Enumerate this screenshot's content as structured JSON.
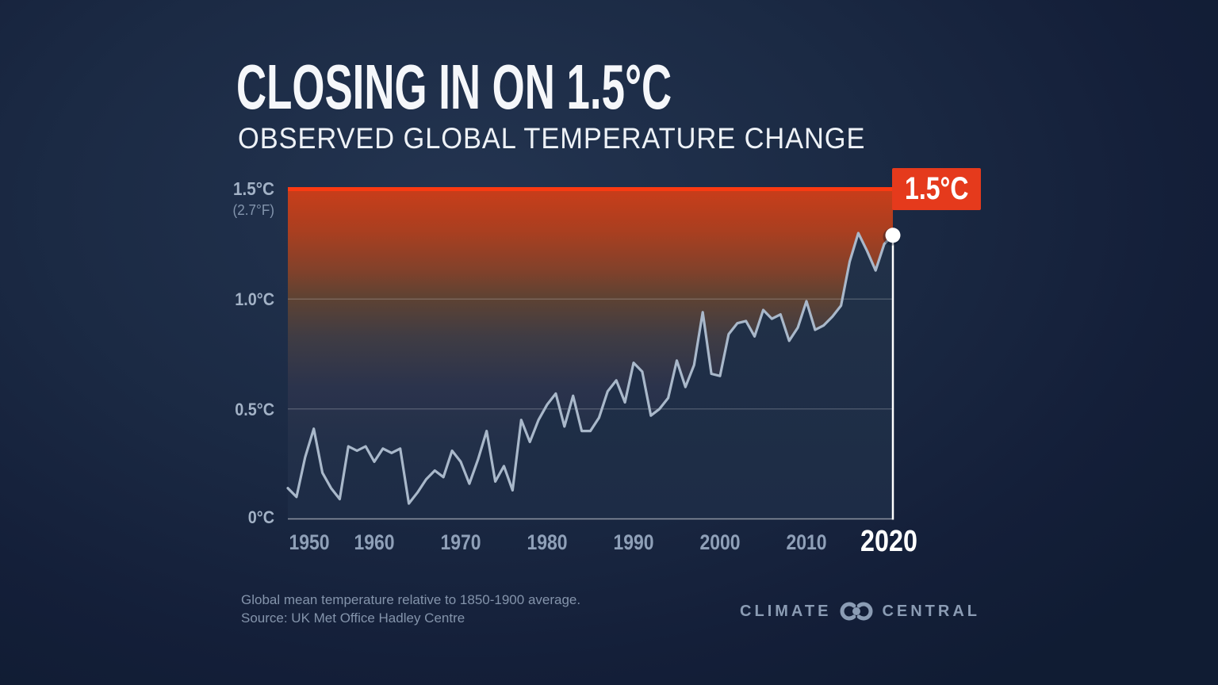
{
  "header": {
    "title": "CLOSING IN ON 1.5°C",
    "subtitle": "OBSERVED GLOBAL TEMPERATURE CHANGE"
  },
  "badge": {
    "label": "1.5°C"
  },
  "y_axis": {
    "top_label": "1.5°C",
    "top_sublabel": "(2.7°F)"
  },
  "x_axis": {
    "ticks": [
      "1950",
      "1960",
      "1970",
      "1980",
      "1990",
      "2000",
      "2010"
    ],
    "highlight_tick": "2020"
  },
  "footer": {
    "note_line1": "Global mean temperature relative to 1850-1900 average.",
    "note_line2": "Source: UK Met Office Hadley Centre"
  },
  "logo": {
    "left_text": "CLIMATE",
    "right_text": "CENTRAL"
  },
  "colors": {
    "background_navy": "#15233c",
    "plot_navy_top": "#223248",
    "plot_navy_bottom": "#1d2c46",
    "threshold_red": "#fa3a12",
    "badge_red": "#e53a1c",
    "line_gray_blue": "#a9b8ca",
    "endpoint_white": "#ffffff",
    "grid_line": "rgba(255,255,255,0.25)",
    "zero_axis_line": "rgba(255,255,255,0.5)",
    "tick_label": "#8fa0b8",
    "fill_gradient": [
      [
        0.0,
        "#c93d1a"
      ],
      [
        0.13,
        "#a93f20"
      ],
      [
        0.24,
        "#84412a"
      ],
      [
        0.33,
        "#5e4233"
      ],
      [
        0.45,
        "#3f3c44"
      ],
      [
        0.6,
        "#2b334c"
      ],
      [
        0.78,
        "#223049"
      ],
      [
        1.0,
        "#1f2d49"
      ]
    ]
  },
  "chart_data": {
    "type": "line",
    "title": "CLOSING IN ON 1.5°C",
    "subtitle": "OBSERVED GLOBAL TEMPERATURE CHANGE",
    "unit": "°C",
    "baseline_note": "Global mean temperature relative to 1850-1900 average",
    "source": "UK Met Office Hadley Centre",
    "ylim": [
      0,
      1.5
    ],
    "threshold": {
      "value": 1.5,
      "label": "1.5°C",
      "fahrenheit_label": "(2.7°F)"
    },
    "y_ticks": [
      {
        "value": 1.0,
        "label": "1.0°C"
      },
      {
        "value": 0.5,
        "label": "0.5°C"
      },
      {
        "value": 0.0,
        "label": "0°C"
      }
    ],
    "x_ticks": [
      1950,
      1960,
      1970,
      1980,
      1990,
      2000,
      2010,
      2020
    ],
    "highlight_year": 2020,
    "end_point": {
      "year": 2020,
      "value": 1.29
    },
    "years": [
      1950,
      1951,
      1952,
      1953,
      1954,
      1955,
      1956,
      1957,
      1958,
      1959,
      1960,
      1961,
      1962,
      1963,
      1964,
      1965,
      1966,
      1967,
      1968,
      1969,
      1970,
      1971,
      1972,
      1973,
      1974,
      1975,
      1976,
      1977,
      1978,
      1979,
      1980,
      1981,
      1982,
      1983,
      1984,
      1985,
      1986,
      1987,
      1988,
      1989,
      1990,
      1991,
      1992,
      1993,
      1994,
      1995,
      1996,
      1997,
      1998,
      1999,
      2000,
      2001,
      2002,
      2003,
      2004,
      2005,
      2006,
      2007,
      2008,
      2009,
      2010,
      2011,
      2012,
      2013,
      2014,
      2015,
      2016,
      2017,
      2018,
      2019,
      2020
    ],
    "values": [
      0.14,
      0.1,
      0.28,
      0.41,
      0.21,
      0.14,
      0.09,
      0.33,
      0.31,
      0.33,
      0.26,
      0.32,
      0.3,
      0.32,
      0.07,
      0.12,
      0.18,
      0.22,
      0.19,
      0.31,
      0.26,
      0.16,
      0.27,
      0.4,
      0.17,
      0.24,
      0.13,
      0.45,
      0.35,
      0.45,
      0.52,
      0.57,
      0.42,
      0.56,
      0.4,
      0.4,
      0.46,
      0.58,
      0.63,
      0.53,
      0.71,
      0.67,
      0.47,
      0.5,
      0.55,
      0.72,
      0.6,
      0.7,
      0.94,
      0.66,
      0.65,
      0.84,
      0.89,
      0.9,
      0.83,
      0.95,
      0.91,
      0.93,
      0.81,
      0.87,
      0.99,
      0.86,
      0.88,
      0.92,
      0.97,
      1.17,
      1.3,
      1.22,
      1.13,
      1.25,
      1.29
    ]
  }
}
